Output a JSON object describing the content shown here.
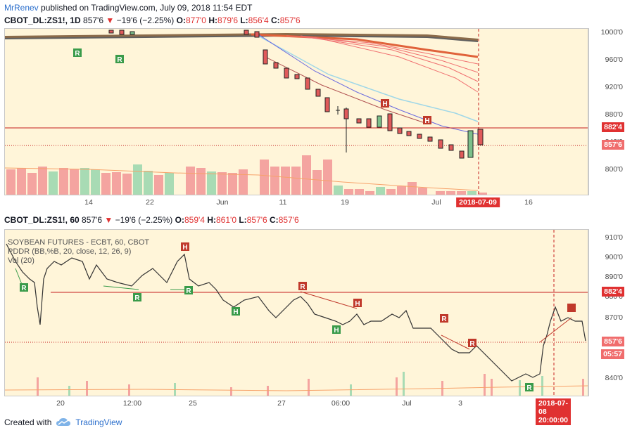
{
  "header": {
    "user": "MrRenev",
    "published_text": "published on TradingView.com, July 09, 2018 11:54 EDT"
  },
  "top_pane": {
    "symbol": "CBOT_DL:ZS1!, 1D",
    "last": "857'6",
    "change": "−19'6 (−2.25%)",
    "o_label": "O:",
    "o": "877'0",
    "h_label": "H:",
    "h": "879'6",
    "l_label": "L:",
    "l": "856'4",
    "c_label": "C:",
    "c": "857'6",
    "y_ticks": [
      "1000'0",
      "960'0",
      "920'0",
      "880'0",
      "840'0",
      "800'0"
    ],
    "x_ticks": [
      "14",
      "22",
      "Jun",
      "11",
      "19",
      "Jul",
      "16"
    ],
    "price_tag_resist": "882'4",
    "price_tag_last": "857'6",
    "date_tag": "2018-07-09",
    "markers": [
      "R",
      "R",
      "H",
      "H"
    ]
  },
  "bottom_pane": {
    "symbol": "CBOT_DL:ZS1!, 60",
    "last": "857'6",
    "change": "−19'6 (−2.25%)",
    "o_label": "O:",
    "o": "859'4",
    "h_label": "H:",
    "h": "861'0",
    "l_label": "L:",
    "l": "857'6",
    "c_label": "C:",
    "c": "857'6",
    "legend": [
      "SOYBEAN FUTURES - ECBT, 60, CBOT",
      "PDDR (BB,%B, 20, close, 12, 26, 9)",
      "Vol (20)"
    ],
    "y_ticks": [
      "910'0",
      "900'0",
      "890'0",
      "880'0",
      "870'0",
      "860'0",
      "840'0"
    ],
    "x_ticks": [
      "20",
      "12:00",
      "25",
      "27",
      "06:00",
      "Jul",
      "3"
    ],
    "price_tag_resist": "882'4",
    "price_tag_last": "857'6",
    "countdown": "05:57",
    "date_tag": "2018-07-08 20:00:00",
    "markers": [
      "R",
      "R",
      "H",
      "R",
      "H",
      "R",
      "H",
      "H",
      "R",
      "R",
      "R"
    ]
  },
  "footer": {
    "created_with": "Created with",
    "brand": "TradingView"
  },
  "colors": {
    "up": "#7cc08a",
    "down": "#e05a5a",
    "bg_plot": "#fff5d9",
    "resist": "#c41d1d",
    "marker_green": "#3a9b4a",
    "marker_red": "#c0392b"
  }
}
